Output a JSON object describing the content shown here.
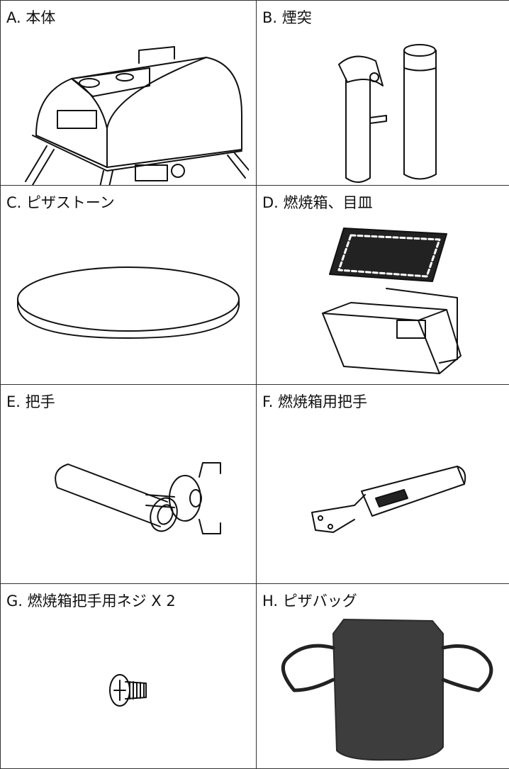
{
  "parts": [
    {
      "label": "A. 本体"
    },
    {
      "label": "B. 煙突"
    },
    {
      "label": "C. ピザストーン"
    },
    {
      "label": "D. 燃焼箱、目皿"
    },
    {
      "label": "E. 把手"
    },
    {
      "label": "F. 燃焼箱用把手"
    },
    {
      "label": "G. 燃焼箱把手用ネジ X 2"
    },
    {
      "label": "H. ピザバッグ"
    }
  ]
}
